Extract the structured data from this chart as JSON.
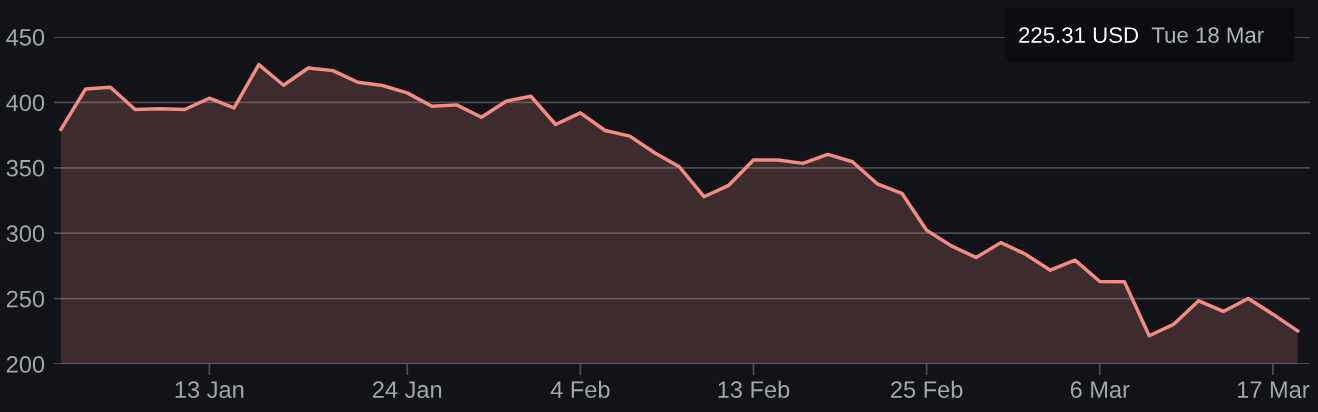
{
  "chart_data": {
    "type": "area",
    "categories": [
      null,
      null,
      null,
      null,
      null,
      null,
      "13 Jan",
      null,
      null,
      null,
      null,
      null,
      null,
      null,
      "24 Jan",
      null,
      null,
      null,
      null,
      null,
      null,
      "4 Feb",
      null,
      null,
      null,
      null,
      null,
      null,
      "13 Feb",
      null,
      null,
      null,
      null,
      null,
      null,
      "25 Feb",
      null,
      null,
      null,
      null,
      null,
      null,
      "6 Mar",
      null,
      null,
      null,
      null,
      null,
      null,
      "17 Mar",
      null
    ],
    "series": [
      {
        "color": "#f28b82",
        "values": [
          379.3,
          410.3,
          411.6,
          394.6,
          395.1,
          394.6,
          403.2,
          395.8,
          428.9,
          413.1,
          426.3,
          424.3,
          415.4,
          412.9,
          407.3,
          397.1,
          398.1,
          388.7,
          400.9,
          404.7,
          383.1,
          392.0,
          378.5,
          374.2,
          361.5,
          350.8,
          327.9,
          336.6,
          355.9,
          355.9,
          353.4,
          360.2,
          354.6,
          337.8,
          330.5,
          302.2,
          290.3,
          281.4,
          292.8,
          283.9,
          271.7,
          279.4,
          263.1,
          262.8,
          221.6,
          230.5,
          248.3,
          240.2,
          250.1,
          238.1,
          225.3
        ]
      }
    ],
    "ylim": [
      200,
      450
    ],
    "yticks": [
      200,
      250,
      300,
      350,
      400,
      450
    ],
    "grid": "y",
    "annotations": [
      "225.31 USD",
      "Tue 18 Mar"
    ]
  }
}
